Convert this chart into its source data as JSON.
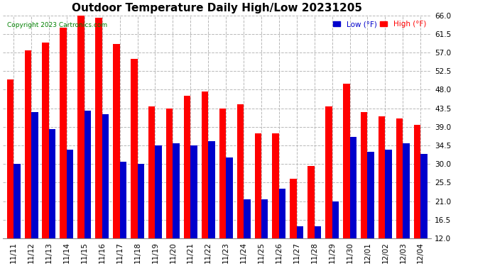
{
  "title": "Outdoor Temperature Daily High/Low 20231205",
  "copyright": "Copyright 2023 Cartronics.com",
  "legend_low": "Low",
  "legend_high": "High",
  "legend_unit": "(°F)",
  "dates": [
    "11/11",
    "11/12",
    "11/13",
    "11/14",
    "11/15",
    "11/16",
    "11/17",
    "11/18",
    "11/19",
    "11/20",
    "11/21",
    "11/22",
    "11/23",
    "11/24",
    "11/25",
    "11/26",
    "11/27",
    "11/28",
    "11/29",
    "11/30",
    "12/01",
    "12/02",
    "12/03",
    "12/04"
  ],
  "highs": [
    50.5,
    57.5,
    59.5,
    63.0,
    66.5,
    65.5,
    59.0,
    55.5,
    44.0,
    43.5,
    46.5,
    47.5,
    43.5,
    44.5,
    37.5,
    37.5,
    26.5,
    29.5,
    44.0,
    49.5,
    42.5,
    41.5,
    41.0,
    39.5
  ],
  "lows": [
    30.0,
    42.5,
    38.5,
    33.5,
    43.0,
    42.0,
    30.5,
    30.0,
    34.5,
    35.0,
    34.5,
    35.5,
    31.5,
    21.5,
    21.5,
    24.0,
    15.0,
    15.0,
    21.0,
    36.5,
    33.0,
    33.5,
    35.0,
    32.5
  ],
  "high_color": "#ff0000",
  "low_color": "#0000cc",
  "bg_color": "#ffffff",
  "grid_color": "#b8b8b8",
  "ylim_min": 12.0,
  "ylim_max": 66.0,
  "yticks": [
    12.0,
    16.5,
    21.0,
    25.5,
    30.0,
    34.5,
    39.0,
    43.5,
    48.0,
    52.5,
    57.0,
    61.5,
    66.0
  ],
  "title_fontsize": 11,
  "tick_fontsize": 7.5,
  "bar_width": 0.38
}
